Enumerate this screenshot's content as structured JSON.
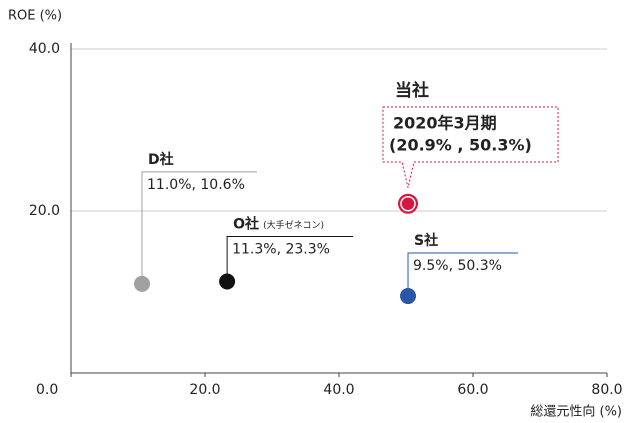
{
  "chart_data": {
    "type": "scatter",
    "ylabel": "ROE (%)",
    "xlabel": "総還元性向 (%)",
    "xlim": [
      0,
      80
    ],
    "ylim": [
      0,
      40
    ],
    "xticks": [
      {
        "value": 0,
        "label": "0.0"
      },
      {
        "value": 20,
        "label": "20.0"
      },
      {
        "value": 40,
        "label": "40.0"
      },
      {
        "value": 60,
        "label": "60.0"
      },
      {
        "value": 80,
        "label": "80.0"
      }
    ],
    "yticks": [
      {
        "value": 20,
        "label": "20.0"
      },
      {
        "value": 40,
        "label": "40.0"
      }
    ],
    "grid": true,
    "series": [
      {
        "name": "D社",
        "color": "#a0a0a0",
        "x": [
          10.6
        ],
        "values": [
          11.0
        ],
        "value_labels": [
          "11.0%, 10.6%"
        ]
      },
      {
        "name": "O社",
        "note": "(大手ゼネコン)",
        "color": "#111111",
        "x": [
          23.3
        ],
        "values": [
          11.3
        ],
        "value_labels": [
          "11.3%, 23.3%"
        ]
      },
      {
        "name": "S社",
        "color": "#2a56a8",
        "x": [
          50.3
        ],
        "values": [
          9.5
        ],
        "value_labels": [
          "9.5%, 50.3%"
        ]
      },
      {
        "name": "当社",
        "period": "2020年3月期",
        "color": "#d7163f",
        "x": [
          50.3
        ],
        "values": [
          20.9
        ],
        "value_labels": [
          "(20.9% , 50.3%)"
        ]
      }
    ]
  }
}
